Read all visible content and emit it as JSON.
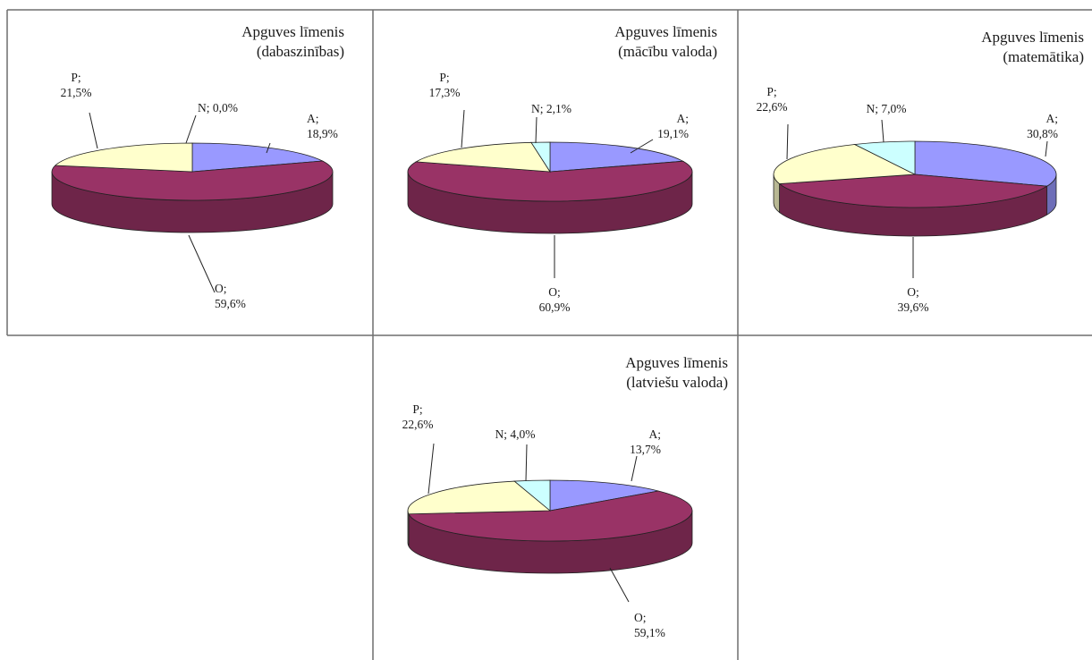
{
  "chart_data": [
    {
      "type": "pie",
      "title": "Apguves līmenis",
      "subtitle": "(dabaszinības)",
      "categories": [
        "A",
        "O",
        "P",
        "N"
      ],
      "values": [
        18.9,
        59.6,
        21.5,
        0.0
      ],
      "labels": [
        "A;\n18,9%",
        "O;\n59,6%",
        "P;\n21,5%",
        "N; 0,0%"
      ],
      "colors": [
        "#9999ff",
        "#993366",
        "#ffffcc",
        "#ccffff"
      ],
      "view": "3d"
    },
    {
      "type": "pie",
      "title": "Apguves līmenis",
      "subtitle": "(mācību valoda)",
      "categories": [
        "A",
        "O",
        "P",
        "N"
      ],
      "values": [
        19.1,
        60.9,
        17.3,
        2.1
      ],
      "labels": [
        "A;\n19,1%",
        "O;\n60,9%",
        "P;\n17,3%",
        "N; 2,1%"
      ],
      "colors": [
        "#9999ff",
        "#993366",
        "#ffffcc",
        "#ccffff"
      ],
      "view": "3d"
    },
    {
      "type": "pie",
      "title": "Apguves līmenis",
      "subtitle": "(matemātika)",
      "categories": [
        "A",
        "O",
        "P",
        "N"
      ],
      "values": [
        30.8,
        39.6,
        22.6,
        7.0
      ],
      "labels": [
        "A;\n30,8%",
        "O;\n39,6%",
        "P;\n22,6%",
        "N; 7,0%"
      ],
      "colors": [
        "#9999ff",
        "#993366",
        "#ffffcc",
        "#ccffff"
      ],
      "view": "3d"
    },
    {
      "type": "pie",
      "title": "Apguves līmenis",
      "subtitle": "(latviešu valoda)",
      "categories": [
        "A",
        "O",
        "P",
        "N"
      ],
      "values": [
        13.7,
        59.1,
        22.6,
        4.0
      ],
      "labels": [
        "A;\n13,7%",
        "O;\n59,1%",
        "P;\n22,6%",
        "N; 4,0%"
      ],
      "colors": [
        "#9999ff",
        "#993366",
        "#ffffcc",
        "#ccffff"
      ],
      "view": "3d"
    }
  ]
}
